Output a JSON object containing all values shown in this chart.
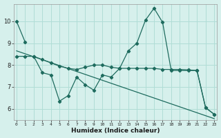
{
  "xlabel": "Humidex (Indice chaleur)",
  "background_color": "#d6f0ec",
  "grid_color": "#b0ddd6",
  "line_color": "#1e6b5e",
  "series_jagged_x": [
    0,
    1,
    2,
    3,
    4,
    5,
    6,
    7,
    8,
    9,
    10,
    11,
    12,
    13,
    14,
    15,
    16,
    17,
    18,
    19,
    20,
    21,
    22,
    23
  ],
  "series_jagged_y": [
    10.0,
    9.05,
    null,
    null,
    null,
    null,
    null,
    null,
    null,
    null,
    null,
    null,
    null,
    null,
    null,
    null,
    null,
    null,
    null,
    null,
    null,
    null,
    null,
    null
  ],
  "series_main_x": [
    2,
    3,
    4,
    5,
    6,
    7,
    8,
    9,
    10,
    11,
    12,
    13,
    14,
    15,
    16,
    17,
    18,
    19,
    20,
    21,
    22,
    23
  ],
  "series_main_y": [
    8.4,
    7.65,
    7.55,
    6.35,
    6.6,
    7.45,
    7.1,
    6.85,
    7.55,
    7.45,
    7.85,
    8.65,
    9.0,
    10.05,
    10.6,
    9.95,
    7.75,
    7.75,
    7.75,
    7.75,
    6.05,
    5.75
  ],
  "series_flat_x": [
    0,
    1,
    2,
    3,
    4,
    5,
    6,
    7,
    8,
    9,
    10,
    11,
    12,
    13,
    14,
    15,
    16,
    17,
    18,
    19,
    20,
    21,
    22,
    23
  ],
  "series_flat_y": [
    8.4,
    8.4,
    8.4,
    8.25,
    8.1,
    7.95,
    7.85,
    7.8,
    7.9,
    8.0,
    8.0,
    7.9,
    7.85,
    7.85,
    7.85,
    7.85,
    7.85,
    7.8,
    7.8,
    7.8,
    7.78,
    7.75,
    6.05,
    5.75
  ],
  "trend_x": [
    0,
    23
  ],
  "trend_y": [
    8.65,
    5.55
  ],
  "ylim": [
    5.5,
    10.8
  ],
  "xlim": [
    -0.3,
    23.3
  ],
  "yticks": [
    6,
    7,
    8,
    9,
    10
  ],
  "xticks": [
    0,
    1,
    2,
    3,
    4,
    5,
    6,
    7,
    8,
    9,
    10,
    11,
    12,
    13,
    14,
    15,
    16,
    17,
    18,
    19,
    20,
    21,
    22,
    23
  ]
}
